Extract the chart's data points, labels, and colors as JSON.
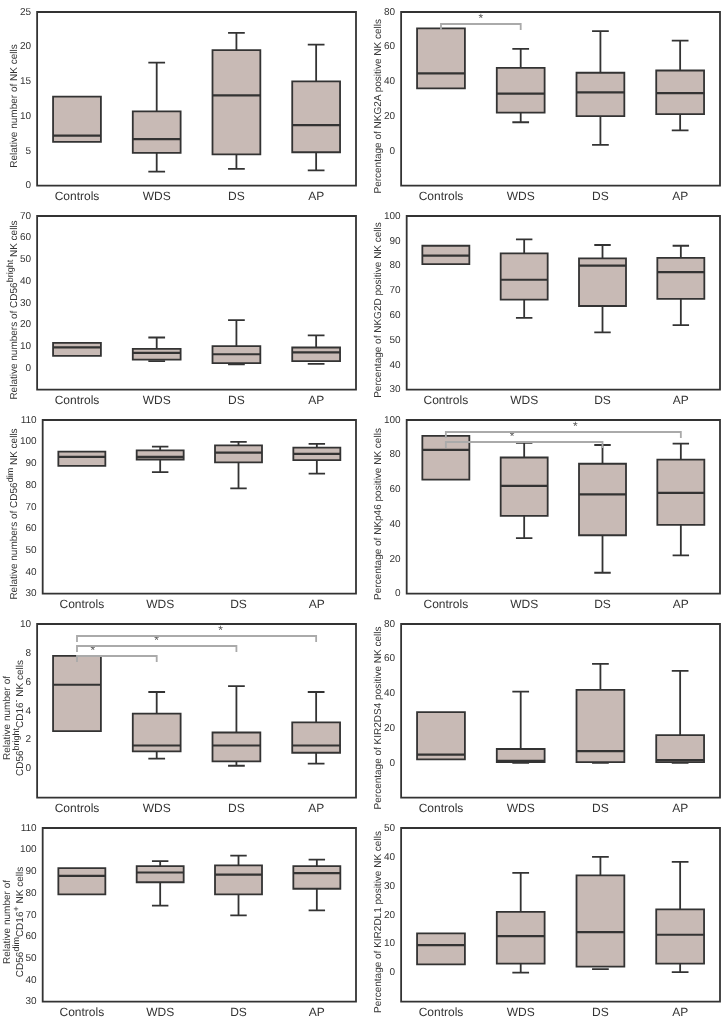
{
  "chart_data": [
    {
      "type": "box",
      "ylabel": "Relative number of NK cells",
      "categories": [
        "Controls",
        "WDS",
        "DS",
        "AP"
      ],
      "color": "#c8bab5",
      "ylim": [
        0,
        25
      ],
      "yticks": [
        0,
        5,
        10,
        15,
        20,
        25
      ],
      "grid": false,
      "legend": false,
      "boxes": [
        {
          "low": 6.3,
          "q1": 6.3,
          "median": 7.2,
          "q3": 12.8,
          "high": 12.8
        },
        {
          "low": 2,
          "q1": 4.7,
          "median": 6.7,
          "q3": 10.7,
          "high": 17.7
        },
        {
          "low": 2.4,
          "q1": 4.5,
          "median": 13,
          "q3": 19.5,
          "high": 22
        },
        {
          "low": 2.2,
          "q1": 4.8,
          "median": 8.7,
          "q3": 15,
          "high": 20.3
        }
      ]
    },
    {
      "type": "box",
      "ylabel": "Percentage of NKG2A positive NK cells",
      "categories": [
        "Controls",
        "WDS",
        "DS",
        "AP"
      ],
      "color": "#c8bab5",
      "ylim": [
        -20,
        80
      ],
      "yticks": [
        0,
        20,
        40,
        60,
        80
      ],
      "grid": false,
      "legend": false,
      "annotations": [
        "*"
      ],
      "boxes": [
        {
          "low": 36,
          "q1": 36,
          "median": 44.7,
          "q3": 70.6,
          "high": 70.6
        },
        {
          "low": 16.5,
          "q1": 22,
          "median": 33,
          "q3": 47.8,
          "high": 58.8
        },
        {
          "low": 3.5,
          "q1": 20,
          "median": 33.7,
          "q3": 45,
          "high": 69
        },
        {
          "low": 11.8,
          "q1": 21.2,
          "median": 33.3,
          "q3": 46.3,
          "high": 63.5
        }
      ]
    },
    {
      "type": "box",
      "ylabel": "Relative numbers of CD56$^{bright}$ NK cells",
      "categories": [
        "Controls",
        "WDS",
        "DS",
        "AP"
      ],
      "color": "#c8bab5",
      "ylim": [
        -10,
        70
      ],
      "yticks": [
        0,
        10,
        20,
        30,
        40,
        50,
        60,
        70
      ],
      "grid": false,
      "legend": false,
      "boxes": [
        {
          "low": 5.5,
          "q1": 5.5,
          "median": 9.5,
          "q3": 11.5,
          "high": 11.5
        },
        {
          "low": 3.1,
          "q1": 3.8,
          "median": 6.9,
          "q3": 8.8,
          "high": 14
        },
        {
          "low": 1.6,
          "q1": 2.2,
          "median": 6.3,
          "q3": 10,
          "high": 22
        },
        {
          "low": 1.9,
          "q1": 3.1,
          "median": 7.2,
          "q3": 9.4,
          "high": 15
        }
      ]
    },
    {
      "type": "box",
      "ylabel": "Percentage of NKG2D positive NK cells",
      "categories": [
        "Controls",
        "WDS",
        "DS",
        "AP"
      ],
      "color": "#c8bab5",
      "ylim": [
        30,
        100
      ],
      "yticks": [
        30,
        40,
        50,
        60,
        70,
        80,
        90,
        100
      ],
      "grid": false,
      "legend": false,
      "boxes": [
        {
          "low": 80.6,
          "q1": 80.6,
          "median": 84,
          "q3": 88,
          "high": 88
        },
        {
          "low": 58.9,
          "q1": 66.3,
          "median": 74.3,
          "q3": 84.9,
          "high": 90.6
        },
        {
          "low": 53.1,
          "q1": 63.7,
          "median": 80,
          "q3": 82.9,
          "high": 88.3
        },
        {
          "low": 56,
          "q1": 66.6,
          "median": 77.4,
          "q3": 83.1,
          "high": 88
        }
      ]
    },
    {
      "type": "box",
      "ylabel": "Relative numbers of CD56$^{dim}$ NK cells",
      "categories": [
        "Controls",
        "WDS",
        "DS",
        "AP"
      ],
      "color": "#c8bab5",
      "ylim": [
        30,
        110
      ],
      "yticks": [
        30,
        40,
        50,
        60,
        70,
        80,
        90,
        100,
        110
      ],
      "grid": false,
      "legend": false,
      "boxes": [
        {
          "low": 88.9,
          "q1": 88.9,
          "median": 93,
          "q3": 95.4,
          "high": 95.4
        },
        {
          "low": 86,
          "q1": 91.8,
          "median": 93,
          "q3": 96,
          "high": 97.7
        },
        {
          "low": 78.5,
          "q1": 90.5,
          "median": 95,
          "q3": 98.3,
          "high": 99.9
        },
        {
          "low": 85.3,
          "q1": 91.5,
          "median": 94.4,
          "q3": 97.3,
          "high": 99
        }
      ]
    },
    {
      "type": "box",
      "ylabel": "Percentage of NKp46 positive NK cells",
      "categories": [
        "Controls",
        "WDS",
        "DS",
        "AP"
      ],
      "color": "#c8bab5",
      "ylim": [
        0,
        100
      ],
      "yticks": [
        0,
        20,
        40,
        60,
        80,
        100
      ],
      "grid": false,
      "legend": false,
      "annotations": [
        "*",
        "*"
      ],
      "boxes": [
        {
          "low": 65.6,
          "q1": 65.6,
          "median": 82.8,
          "q3": 90.8,
          "high": 90.8
        },
        {
          "low": 32,
          "q1": 44.8,
          "median": 62,
          "q3": 78.4,
          "high": 86.8
        },
        {
          "low": 12,
          "q1": 33.6,
          "median": 57.2,
          "q3": 74.8,
          "high": 85.6
        },
        {
          "low": 22,
          "q1": 39.6,
          "median": 58,
          "q3": 77.2,
          "high": 86.4
        }
      ]
    },
    {
      "type": "box",
      "ylabel": "Relative number of CD56$^{bright}$CD16$^{-}$ NK cells",
      "categories": [
        "Controls",
        "WDS",
        "DS",
        "AP"
      ],
      "color": "#c8bab5",
      "ylim": [
        -2,
        10
      ],
      "yticks": [
        0,
        2,
        4,
        6,
        8,
        10
      ],
      "grid": false,
      "legend": false,
      "annotations": [
        "*",
        "*",
        "*"
      ],
      "boxes": [
        {
          "low": 2.6,
          "q1": 2.6,
          "median": 5.8,
          "q3": 7.8,
          "high": 7.8
        },
        {
          "low": 0.7,
          "q1": 1.2,
          "median": 1.6,
          "q3": 3.8,
          "high": 5.3
        },
        {
          "low": 0.2,
          "q1": 0.5,
          "median": 1.6,
          "q3": 2.5,
          "high": 5.7
        },
        {
          "low": 0.35,
          "q1": 1.1,
          "median": 1.6,
          "q3": 3.2,
          "high": 5.3
        }
      ]
    },
    {
      "type": "box",
      "ylabel": "Percentage of KIR2DS4 positive NK cells",
      "categories": [
        "Controls",
        "WDS",
        "DS",
        "AP"
      ],
      "color": "#c8bab5",
      "ylim": [
        -20,
        80
      ],
      "yticks": [
        0,
        20,
        40,
        60,
        80
      ],
      "grid": false,
      "legend": false,
      "boxes": [
        {
          "low": 2,
          "q1": 2,
          "median": 4.8,
          "q3": 29.2,
          "high": 29.2
        },
        {
          "low": 0,
          "q1": 0.4,
          "median": 1.2,
          "q3": 8,
          "high": 41
        },
        {
          "low": 0,
          "q1": 0.4,
          "median": 6.8,
          "q3": 42,
          "high": 57
        },
        {
          "low": 0,
          "q1": 0.4,
          "median": 1.6,
          "q3": 16,
          "high": 53
        }
      ]
    },
    {
      "type": "box",
      "ylabel": "Relative number of CD56$^{dim}$CD16$^{+}$ NK cells",
      "categories": [
        "Controls",
        "WDS",
        "DS",
        "AP"
      ],
      "color": "#c8bab5",
      "ylim": [
        30,
        110
      ],
      "yticks": [
        30,
        40,
        50,
        60,
        70,
        80,
        90,
        100,
        110
      ],
      "grid": false,
      "legend": false,
      "boxes": [
        {
          "low": 79.4,
          "q1": 79.4,
          "median": 87.9,
          "q3": 91.5,
          "high": 91.5
        },
        {
          "low": 74.2,
          "q1": 85,
          "median": 89.5,
          "q3": 92.4,
          "high": 94.7
        },
        {
          "low": 69.7,
          "q1": 79.4,
          "median": 88.5,
          "q3": 92.8,
          "high": 97.3
        },
        {
          "low": 72,
          "q1": 82,
          "median": 89.2,
          "q3": 92.4,
          "high": 95.4
        }
      ]
    },
    {
      "type": "box",
      "ylabel": "Percentage of KIR2DL1 positive NK cells",
      "categories": [
        "Controls",
        "WDS",
        "DS",
        "AP"
      ],
      "color": "#c8bab5",
      "ylim": [
        -10,
        50
      ],
      "yticks": [
        0,
        10,
        20,
        30,
        40,
        50
      ],
      "grid": false,
      "legend": false,
      "boxes": [
        {
          "low": 2.9,
          "q1": 2.9,
          "median": 9.5,
          "q3": 13.6,
          "high": 13.6
        },
        {
          "low": 0,
          "q1": 3.1,
          "median": 12.6,
          "q3": 21,
          "high": 34.5
        },
        {
          "low": 1.2,
          "q1": 2.1,
          "median": 14,
          "q3": 33.6,
          "high": 40
        },
        {
          "low": 0.2,
          "q1": 3.1,
          "median": 13.1,
          "q3": 21.9,
          "high": 38.3
        }
      ]
    }
  ]
}
